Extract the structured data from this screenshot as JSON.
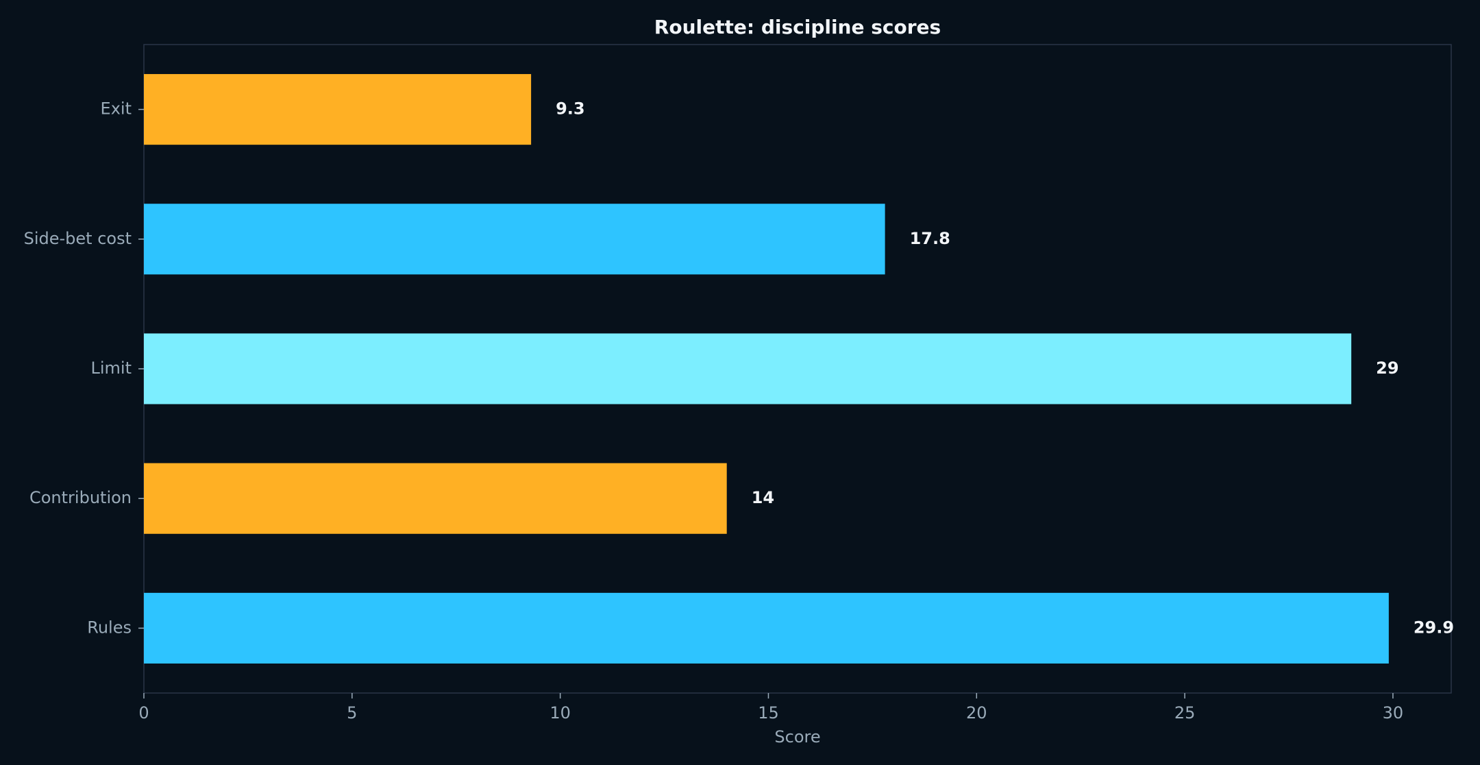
{
  "chart_data": {
    "type": "bar",
    "orientation": "horizontal",
    "title": "Roulette: discipline scores",
    "xlabel": "Score",
    "ylabel": "",
    "categories": [
      "Rules",
      "Contribution",
      "Limit",
      "Side-bet cost",
      "Exit"
    ],
    "values": [
      29.9,
      14,
      29,
      17.8,
      9.3
    ],
    "value_labels": [
      "29.9",
      "14",
      "29",
      "17.8",
      "9.3"
    ],
    "bar_colors": [
      "#2ec4ff",
      "#ffb024",
      "#7ceeff",
      "#2ec4ff",
      "#ffb024"
    ],
    "xlim": [
      0,
      31.4
    ],
    "xticks": [
      0,
      5,
      10,
      15,
      20,
      25,
      30
    ],
    "grid": false,
    "legend": "none"
  },
  "colors": {
    "background": "#07111b",
    "frame": "#2a3648",
    "text_muted": "#9aabb9",
    "text_bright": "#f2f5f8"
  }
}
